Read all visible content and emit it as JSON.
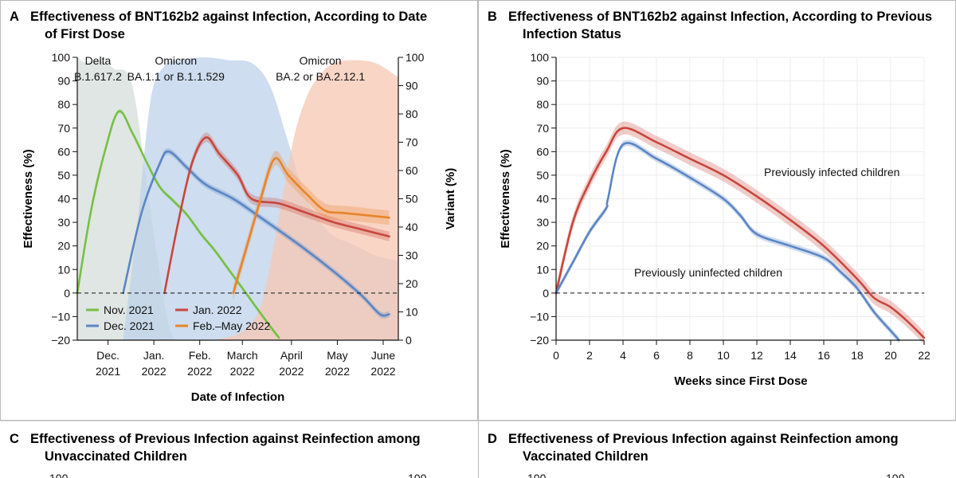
{
  "figure": {
    "palette": {
      "green": "#76c043",
      "blue": "#5b86c4",
      "red": "#c8473c",
      "orange": "#e8842a"
    }
  },
  "panels": {
    "A": {
      "letter": "A",
      "title_line1": "Effectiveness of BNT162b2 against Infection, According to Date",
      "title_line2": "of First Dose"
    },
    "B": {
      "letter": "B",
      "title_line1": "Effectiveness of BNT162b2 against Infection, According to Previous",
      "title_line2": "Infection Status"
    },
    "C": {
      "letter": "C",
      "title_line1": "Effectiveness of Previous Infection against Reinfection among",
      "title_line2": "Unvaccinated Children",
      "y_top": "100",
      "y_top_right": "100"
    },
    "D": {
      "letter": "D",
      "title_line1": "Effectiveness of Previous Infection against Reinfection among",
      "title_line2": "Vaccinated Children",
      "y_top": "100",
      "y_top_right": "100"
    }
  },
  "chart_data": [
    {
      "panel": "A",
      "type": "line",
      "title": "Effectiveness of BNT162b2 against Infection, According to Date of First Dose",
      "xlabel": "Date of Infection",
      "ylabel": "Effectiveness (%)",
      "ylabel_right": "Variant (%)",
      "ylim": [
        -20,
        100
      ],
      "ylim_right": [
        0,
        100
      ],
      "yticks": [
        100,
        90,
        80,
        70,
        60,
        50,
        40,
        30,
        20,
        10,
        0,
        -10,
        -20
      ],
      "yticks_right": [
        100,
        90,
        80,
        70,
        60,
        50,
        40,
        30,
        20,
        10,
        0
      ],
      "xlim": [
        0,
        7
      ],
      "x_ticks": [
        {
          "x": 0.67,
          "line1": "Dec.",
          "line2": "2021"
        },
        {
          "x": 1.67,
          "line1": "Jan.",
          "line2": "2022"
        },
        {
          "x": 2.67,
          "line1": "Feb.",
          "line2": "2022"
        },
        {
          "x": 3.6,
          "line1": "March",
          "line2": "2022"
        },
        {
          "x": 4.67,
          "line1": "April",
          "line2": "2022"
        },
        {
          "x": 5.67,
          "line1": "May",
          "line2": "2022"
        },
        {
          "x": 6.67,
          "line1": "June",
          "line2": "2022"
        }
      ],
      "variant_areas": [
        {
          "name": "Delta",
          "sub": "B.1.617.2",
          "color": "#d5ddd9",
          "x": [
            0,
            0.2,
            0.5,
            0.8,
            1.2,
            1.6,
            2.0,
            2.3
          ],
          "y": [
            100,
            98,
            99,
            96,
            90,
            45,
            5,
            0
          ]
        },
        {
          "name": "Omicron",
          "sub": "BA.1.1 or B.1.1.529",
          "color": "#bdd1ea",
          "x": [
            1.0,
            1.3,
            1.6,
            1.9,
            2.2,
            2.8,
            3.3,
            3.8,
            4.2,
            4.6,
            5.0,
            5.5,
            6.0,
            6.5,
            7.0
          ],
          "y": [
            0,
            40,
            85,
            97,
            99,
            100,
            99,
            98,
            90,
            70,
            50,
            38,
            34,
            30,
            28
          ]
        },
        {
          "name": "Omicron",
          "sub": "BA.2 or BA.2.12.1",
          "color": "#f7c7b3",
          "x": [
            3.0,
            3.6,
            4.0,
            4.3,
            4.7,
            5.0,
            5.3,
            5.6,
            6.0,
            6.5,
            7.0
          ],
          "y": [
            0,
            3,
            12,
            35,
            70,
            86,
            94,
            98,
            99,
            98,
            93
          ]
        }
      ],
      "series": [
        {
          "name": "Nov. 2021",
          "color": "#76c043",
          "x": [
            0,
            0.3,
            0.6,
            0.9,
            1.2,
            1.5,
            1.8,
            2.1,
            2.4,
            2.7,
            3.0,
            3.3,
            3.6,
            3.9,
            4.2,
            4.4
          ],
          "y": [
            0,
            35,
            60,
            77,
            68,
            56,
            45,
            39,
            33,
            25,
            18,
            10,
            2,
            -6,
            -14,
            -19
          ]
        },
        {
          "name": "Dec. 2021",
          "color": "#5b86c4",
          "x": [
            1.0,
            1.4,
            1.8,
            2.0,
            2.4,
            2.8,
            3.4,
            4.0,
            4.8,
            5.6,
            6.2,
            6.6,
            6.8
          ],
          "y": [
            0,
            34,
            55,
            60,
            53,
            46,
            40,
            32,
            21,
            9,
            -1,
            -9,
            -9
          ]
        },
        {
          "name": "Jan. 2022",
          "color": "#c8473c",
          "x": [
            1.9,
            2.2,
            2.5,
            2.8,
            3.1,
            3.5,
            3.8,
            4.4,
            5.0,
            5.6,
            6.2,
            6.8
          ],
          "y": [
            0,
            30,
            55,
            66,
            59,
            50,
            40,
            38,
            34,
            30,
            27,
            24
          ]
        },
        {
          "name": "Feb.–May 2022",
          "color": "#e8842a",
          "x": [
            3.4,
            3.7,
            4.0,
            4.3,
            4.6,
            5.0,
            5.4,
            5.8,
            6.3,
            6.8
          ],
          "y": [
            0,
            20,
            40,
            57,
            50,
            42,
            35,
            34,
            33,
            32
          ]
        }
      ]
    },
    {
      "panel": "B",
      "type": "line",
      "title": "Effectiveness of BNT162b2 against Infection, According to Previous Infection Status",
      "xlabel": "Weeks since First Dose",
      "ylabel": "Effectiveness (%)",
      "ylim": [
        -20,
        100
      ],
      "yticks": [
        100,
        90,
        80,
        70,
        60,
        50,
        40,
        30,
        20,
        10,
        0,
        -10,
        -20
      ],
      "xlim": [
        0,
        22
      ],
      "xticks": [
        0,
        2,
        4,
        6,
        8,
        10,
        12,
        14,
        16,
        18,
        20,
        22
      ],
      "annotations": [
        {
          "text": "Previously infected children",
          "series": "Previously infected children"
        },
        {
          "text": "Previously uninfected children",
          "series": "Previously uninfected children"
        }
      ],
      "series": [
        {
          "name": "Previously infected children",
          "color": "#c8473c",
          "x": [
            0,
            1,
            2,
            3,
            4,
            6,
            8,
            10,
            12,
            14,
            16,
            18,
            19,
            20,
            21,
            22
          ],
          "y": [
            0,
            30,
            47,
            60,
            70,
            64,
            57,
            50,
            41,
            31,
            20,
            6,
            -2,
            -6,
            -12,
            -19
          ]
        },
        {
          "name": "Previously uninfected children",
          "color": "#5b86c4",
          "x": [
            0,
            1,
            2,
            3,
            3.1,
            4,
            6,
            8,
            10,
            11,
            12,
            14,
            16,
            17,
            18,
            19,
            20,
            20.5
          ],
          "y": [
            0,
            13,
            26,
            36,
            40,
            63,
            57,
            49,
            40,
            33,
            25,
            20,
            15,
            9,
            2,
            -8,
            -16,
            -20
          ]
        }
      ]
    }
  ]
}
